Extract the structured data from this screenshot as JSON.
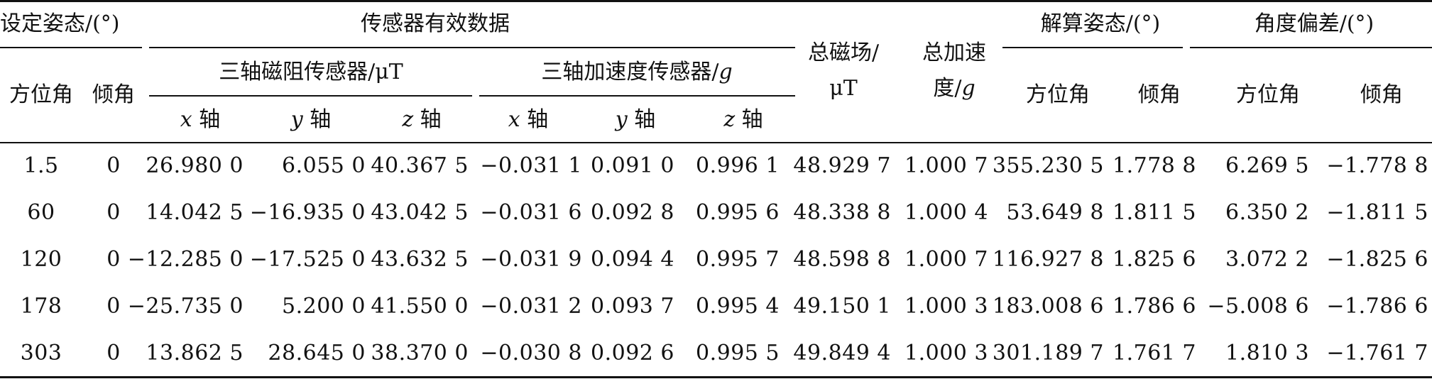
{
  "table": {
    "groups": {
      "set_attitude": "设定姿态/(°)",
      "sensor_data": "传感器有效数据",
      "total_mag": "总磁场/\nμT",
      "total_acc_a": "总加速",
      "total_acc_b": "度/",
      "total_acc_unit": "g",
      "solved_attitude": "解算姿态/(°)",
      "angle_error": "角度偏差/(°)"
    },
    "subgroups": {
      "mag_sensor": "三轴磁阻传感器/μT",
      "acc_sensor_a": "三轴加速度传感器/",
      "acc_sensor_unit": "g"
    },
    "headers": {
      "set_azimuth": "方位角",
      "set_tilt": "倾角",
      "mag_x": "x",
      "mag_y": "y",
      "mag_z": "z",
      "acc_x": "x",
      "acc_y": "y",
      "acc_z": "z",
      "axis_suffix": "轴",
      "sol_azimuth": "方位角",
      "sol_tilt": "倾角",
      "err_azimuth": "方位角",
      "err_tilt": "倾角"
    },
    "rows": [
      [
        "1.5",
        "0",
        "26.980 0",
        "6.055 0",
        "40.367 5",
        "−0.031 1",
        "0.091 0",
        "0.996 1",
        "48.929 7",
        "1.000 7",
        "355.230 5",
        "1.778 8",
        "6.269 5",
        "−1.778 8"
      ],
      [
        "60",
        "0",
        "14.042 5",
        "−16.935 0",
        "43.042 5",
        "−0.031 6",
        "0.092 8",
        "0.995 6",
        "48.338 8",
        "1.000 4",
        "53.649 8",
        "1.811 5",
        "6.350 2",
        "−1.811 5"
      ],
      [
        "120",
        "0",
        "−12.285 0",
        "−17.525 0",
        "43.632 5",
        "−0.031 9",
        "0.094 4",
        "0.995 7",
        "48.598 8",
        "1.000 7",
        "116.927 8",
        "1.825 6",
        "3.072 2",
        "−1.825 6"
      ],
      [
        "178",
        "0",
        "−25.735 0",
        "5.200 0",
        "41.550 0",
        "−0.031 2",
        "0.093 7",
        "0.995 4",
        "49.150 1",
        "1.000 3",
        "183.008 6",
        "1.786 6",
        "−5.008 6",
        "−1.786 6"
      ],
      [
        "303",
        "0",
        "13.862 5",
        "28.645 0",
        "38.370 0",
        "−0.030 8",
        "0.092 6",
        "0.995 5",
        "49.849 4",
        "1.000 3",
        "301.189 7",
        "1.761 7",
        "1.810 3",
        "−1.761 7"
      ]
    ]
  }
}
